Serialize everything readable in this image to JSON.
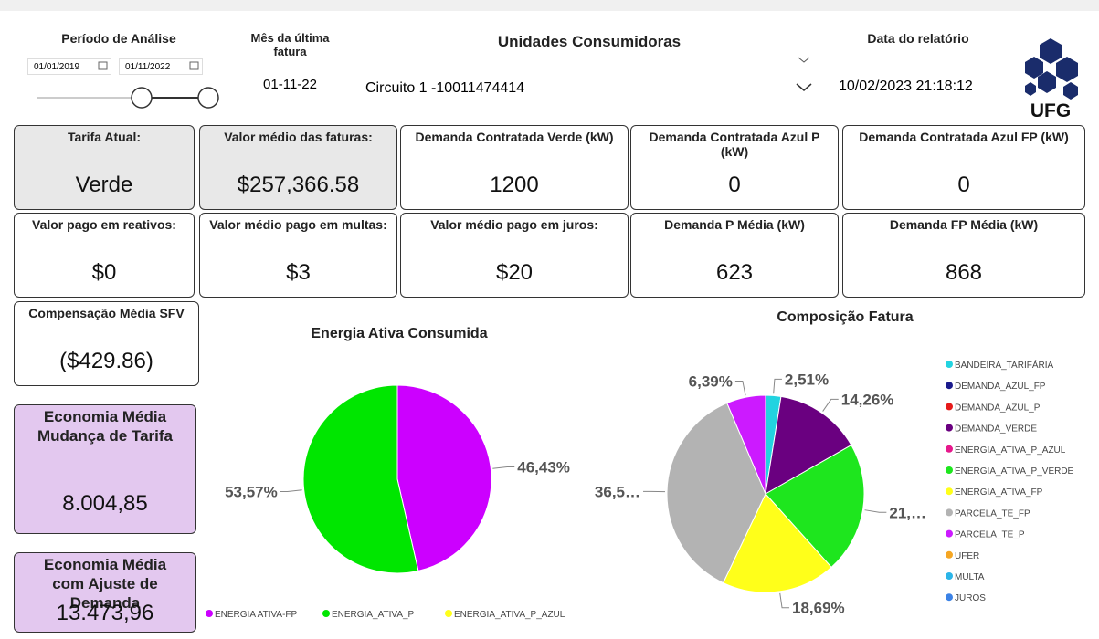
{
  "filters": {
    "period": {
      "label": "Período de Análise",
      "start": "01/01/2019",
      "end": "01/11/2022"
    },
    "last_invoice": {
      "label": "Mês da última fatura",
      "value": "01-11-22"
    },
    "units": {
      "label": "Unidades Consumidoras",
      "value": "Circuito 1 -10011474414"
    },
    "report_date": {
      "label": "Data do relatório",
      "value": "10/02/2023 21:18:12"
    }
  },
  "logo": "UFG",
  "cards": [
    {
      "title": "Tarifa Atual:",
      "value": "Verde"
    },
    {
      "title": "Valor médio das faturas:",
      "value": "$257,366.58"
    },
    {
      "title": "Demanda Contratada Verde (kW)",
      "value": "1200"
    },
    {
      "title": "Demanda Contratada Azul P (kW)",
      "value": "0"
    },
    {
      "title": "Demanda Contratada Azul FP (kW)",
      "value": "0"
    },
    {
      "title": "Valor pago em reativos:",
      "value": "$0"
    },
    {
      "title": "Valor médio pago em multas:",
      "value": "$3"
    },
    {
      "title": "Valor médio pago em juros:",
      "value": "$20"
    },
    {
      "title": "Demanda P Média (kW)",
      "value": "623"
    },
    {
      "title": "Demanda FP Média (kW)",
      "value": "868"
    },
    {
      "title": "Compensação Média SFV",
      "value": "($429.86)"
    },
    {
      "title": "Economia Média Mudança de Tarifa",
      "value": "8.004,85"
    },
    {
      "title": "Economia Média com Ajuste de Demanda",
      "value": "13.473,96"
    }
  ],
  "chart_data": [
    {
      "type": "pie",
      "title": "Energia Ativa Consumida",
      "categories": [
        "ENERGIA ATIVA-FP",
        "ENERGIA_ATIVA_P",
        "ENERGIA_ATIVA_P_AZUL"
      ],
      "values": [
        46.43,
        53.57,
        0
      ],
      "value_labels": [
        "46,43%",
        "53,57%",
        null
      ],
      "colors": [
        "#cc00ff",
        "#00e600",
        "#ffff1a"
      ],
      "legend": "bottom"
    },
    {
      "type": "pie",
      "title": "Composição Fatura",
      "categories": [
        "BANDEIRA_TARIFÁRIA",
        "DEMANDA_AZUL_FP",
        "DEMANDA_AZUL_P",
        "DEMANDA_VERDE",
        "ENERGIA_ATIVA_P_AZUL",
        "ENERGIA_ATIVA_P_VERDE",
        "ENERGIA_ATIVA_FP",
        "PARCELA_TE_FP",
        "PARCELA_TE_P",
        "UFER",
        "MULTA",
        "JUROS"
      ],
      "values": [
        2.51,
        0,
        0,
        14.26,
        0,
        21.6,
        18.69,
        36.55,
        6.39,
        0,
        0,
        0
      ],
      "value_labels": [
        "2,51%",
        null,
        null,
        "14,26%",
        null,
        "21,…",
        "18,69%",
        "36,5…",
        "6,39%",
        null,
        null,
        null
      ],
      "colors": [
        "#22d3e0",
        "#1a1a8c",
        "#e61a1a",
        "#6a0080",
        "#e6198c",
        "#1ee61e",
        "#ffff1a",
        "#b3b3b3",
        "#cc1aff",
        "#f5a623",
        "#2bb5e8",
        "#3b82e6"
      ],
      "legend": "right"
    }
  ]
}
